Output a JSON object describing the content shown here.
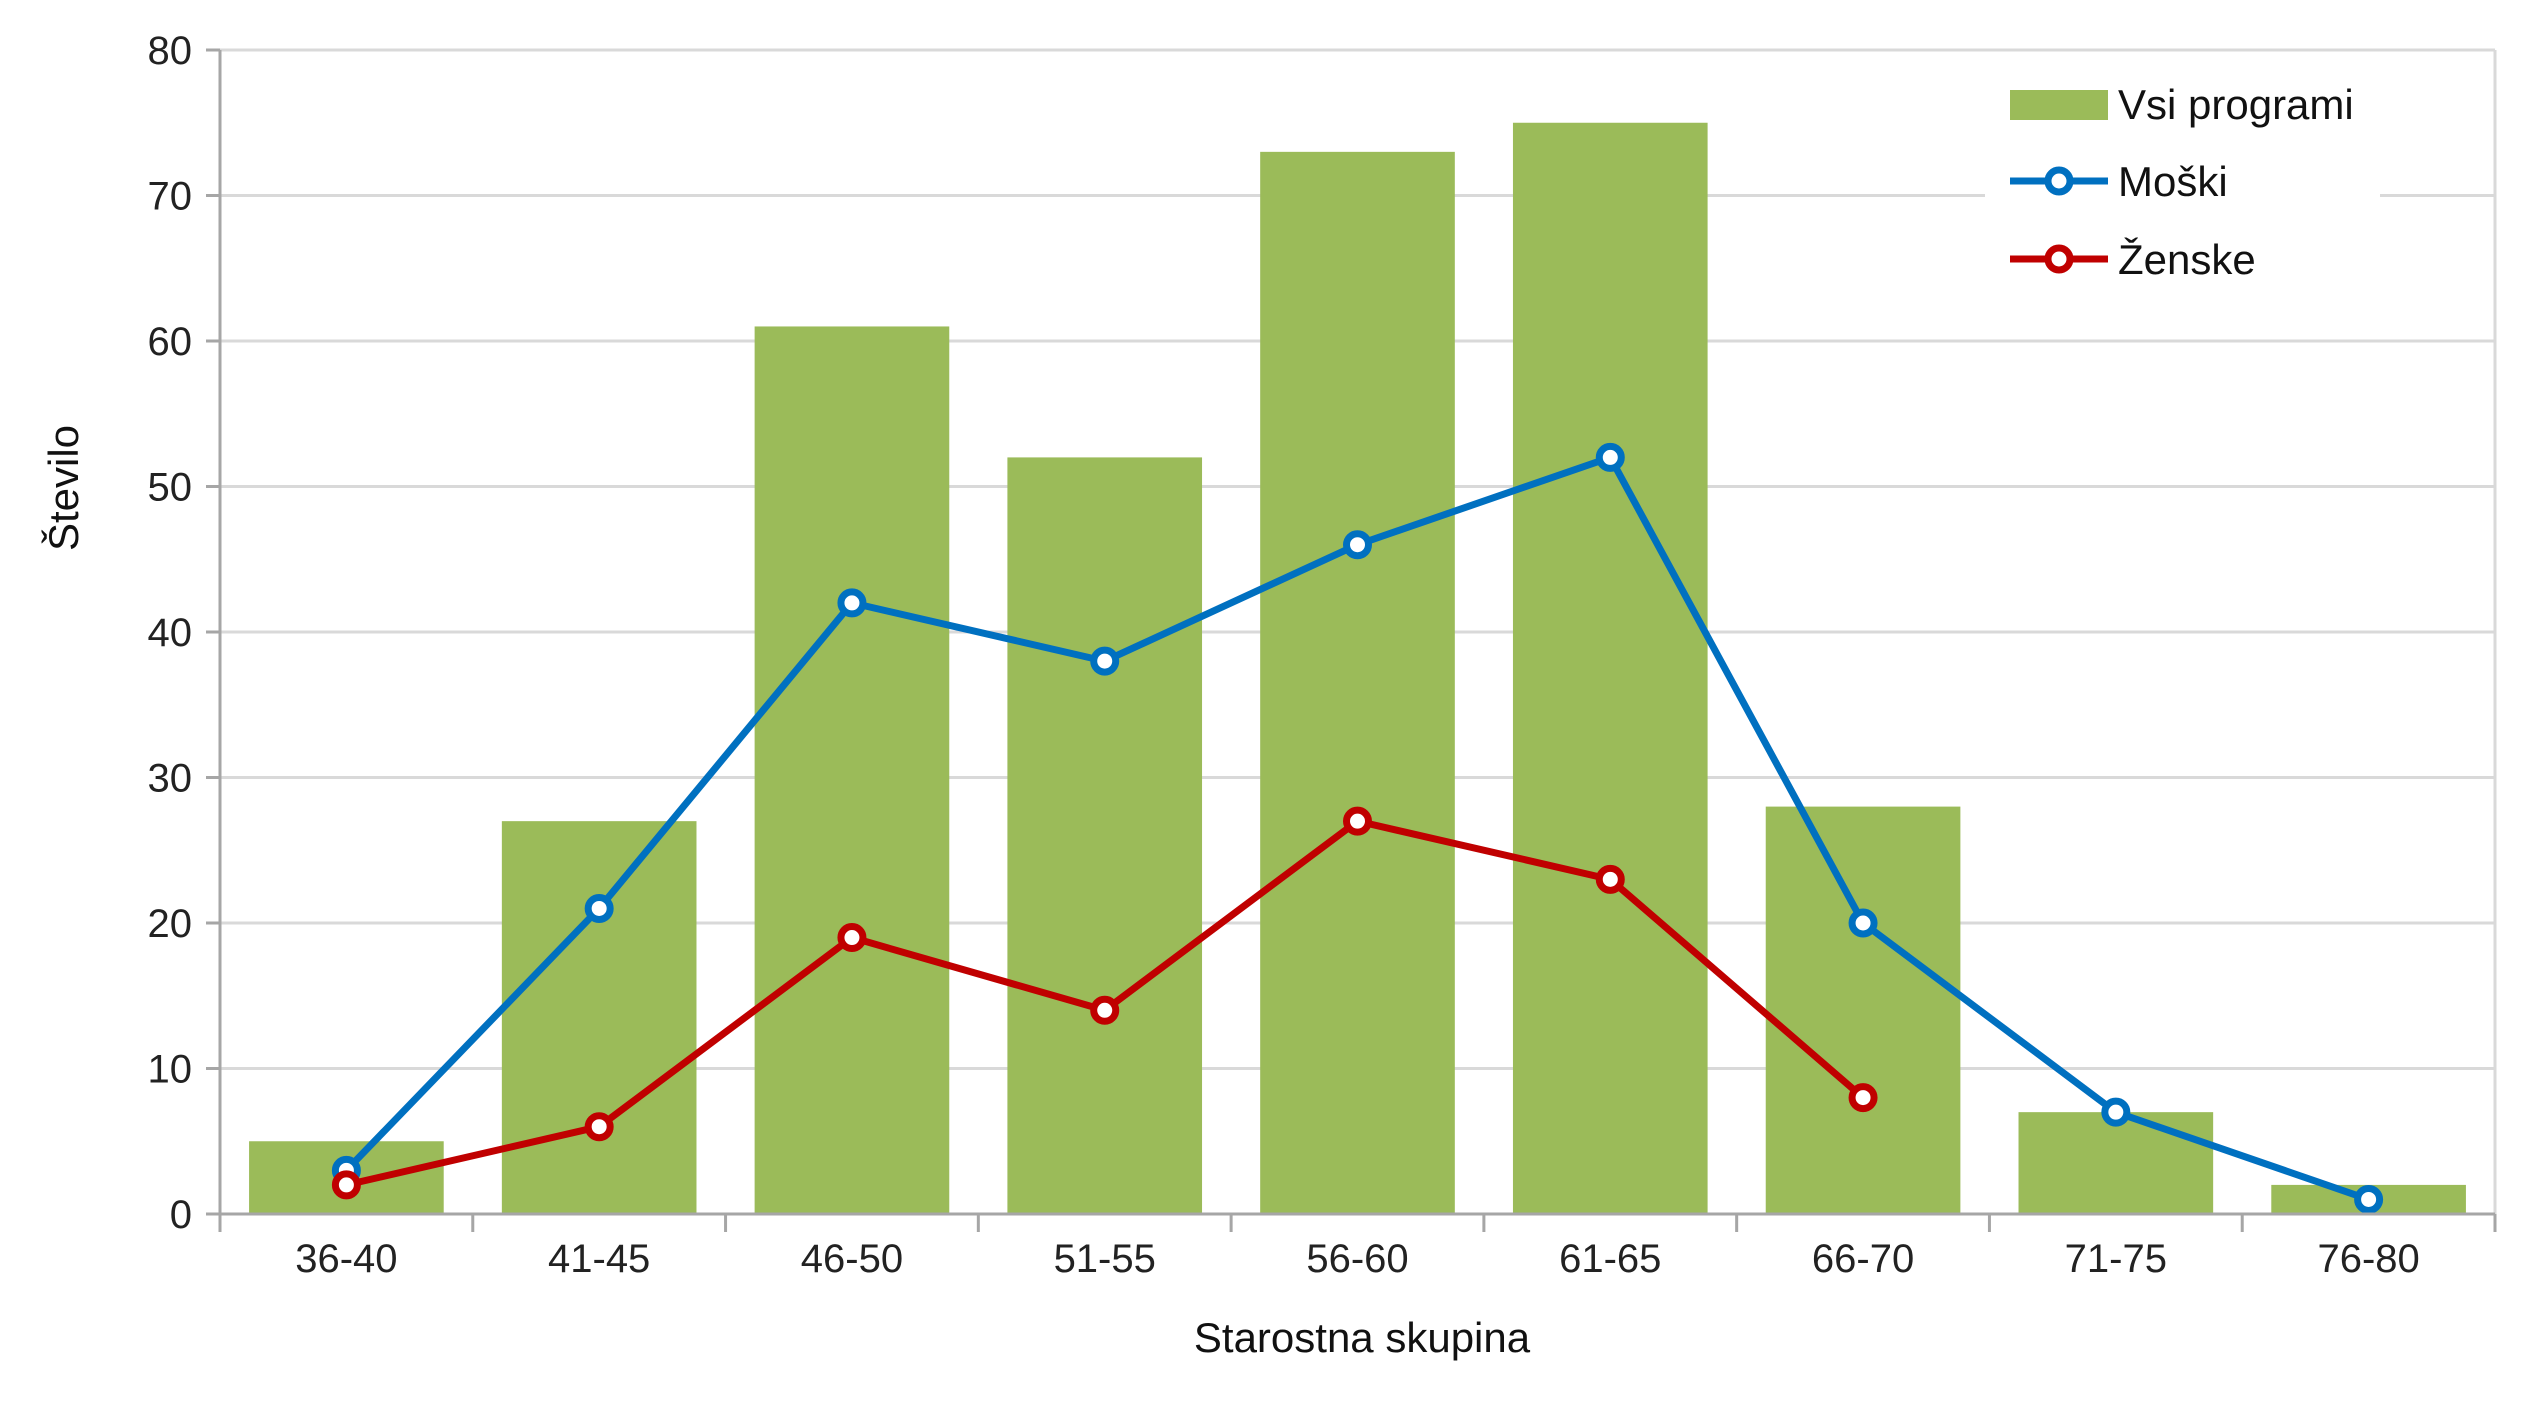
{
  "chart_data": {
    "type": "bar",
    "categories": [
      "36-40",
      "41-45",
      "46-50",
      "51-55",
      "56-60",
      "61-65",
      "66-70",
      "71-75",
      "76-80"
    ],
    "series": [
      {
        "name": "Vsi programi",
        "type": "bar",
        "color": "#9BBB59",
        "values": [
          5,
          27,
          61,
          52,
          73,
          75,
          28,
          7,
          2
        ]
      },
      {
        "name": "Moški",
        "type": "line",
        "color": "#0070C0",
        "values": [
          3,
          21,
          42,
          38,
          46,
          52,
          20,
          7,
          1
        ]
      },
      {
        "name": "Ženske",
        "type": "line",
        "color": "#C00000",
        "values": [
          2,
          6,
          19,
          14,
          27,
          23,
          8,
          null,
          null
        ]
      }
    ],
    "xlabel": "Starostna skupina",
    "ylabel": "Število",
    "ylim": [
      0,
      80
    ],
    "yticks": [
      0,
      10,
      20,
      30,
      40,
      50,
      60,
      70,
      80
    ],
    "grid": true,
    "legend_position": "top-right"
  }
}
